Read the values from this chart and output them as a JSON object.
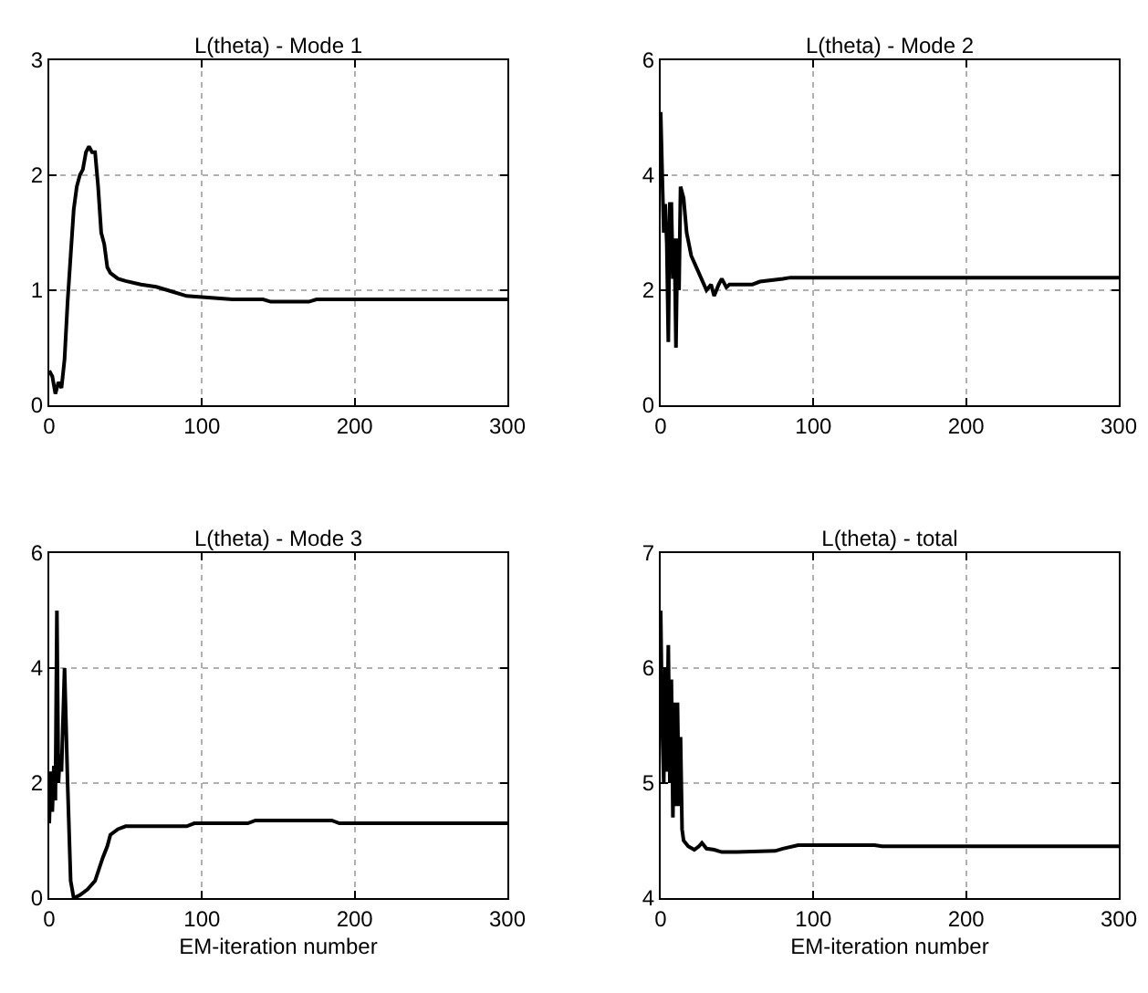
{
  "chart_data": [
    {
      "type": "line",
      "title": "L(theta) - Mode 1",
      "xlim": [
        0,
        300
      ],
      "xticks": [
        0,
        100,
        200,
        300
      ],
      "ylim": [
        0,
        3
      ],
      "yticks": [
        0,
        1,
        2,
        3
      ],
      "grid": true,
      "series": [
        {
          "color": "#000000",
          "x": [
            0,
            2,
            4,
            6,
            8,
            10,
            12,
            14,
            16,
            18,
            20,
            22,
            24,
            26,
            28,
            30,
            32,
            34,
            36,
            38,
            40,
            45,
            50,
            60,
            70,
            80,
            90,
            100,
            110,
            120,
            140,
            145,
            170,
            175,
            200,
            300
          ],
          "values": [
            0.3,
            0.25,
            0.1,
            0.2,
            0.15,
            0.4,
            0.9,
            1.3,
            1.7,
            1.9,
            2.0,
            2.05,
            2.2,
            2.25,
            2.2,
            2.2,
            1.9,
            1.5,
            1.4,
            1.2,
            1.15,
            1.1,
            1.08,
            1.05,
            1.03,
            0.99,
            0.95,
            0.94,
            0.93,
            0.92,
            0.92,
            0.9,
            0.9,
            0.92,
            0.92,
            0.92
          ]
        }
      ]
    },
    {
      "type": "line",
      "title": "L(theta) - Mode 2",
      "xlim": [
        0,
        300
      ],
      "xticks": [
        0,
        100,
        200,
        300
      ],
      "ylim": [
        0,
        6
      ],
      "yticks": [
        0,
        2,
        4,
        6
      ],
      "grid": true,
      "series": [
        {
          "color": "#000000",
          "x": [
            0,
            1,
            2,
            3,
            4,
            5,
            6,
            7,
            8,
            9,
            10,
            11,
            12,
            13,
            15,
            17,
            20,
            25,
            30,
            33,
            35,
            38,
            40,
            43,
            45,
            60,
            65,
            80,
            85,
            300
          ],
          "values": [
            5.1,
            4.0,
            3.0,
            3.5,
            2.8,
            1.1,
            3.5,
            3.5,
            2.2,
            2.9,
            1.0,
            2.9,
            2.0,
            3.8,
            3.6,
            3.0,
            2.6,
            2.3,
            2.0,
            2.1,
            1.9,
            2.1,
            2.2,
            2.05,
            2.1,
            2.1,
            2.15,
            2.2,
            2.22,
            2.22
          ]
        }
      ]
    },
    {
      "type": "line",
      "title": "L(theta) - Mode 3",
      "xlabel": "EM-iteration number",
      "xlim": [
        0,
        300
      ],
      "xticks": [
        0,
        100,
        200,
        300
      ],
      "ylim": [
        0,
        6
      ],
      "yticks": [
        0,
        2,
        4,
        6
      ],
      "grid": true,
      "series": [
        {
          "color": "#000000",
          "x": [
            0,
            1,
            2,
            3,
            4,
            5,
            6,
            7,
            8,
            10,
            12,
            14,
            16,
            20,
            25,
            30,
            35,
            38,
            40,
            45,
            50,
            90,
            95,
            130,
            135,
            185,
            190,
            300
          ],
          "values": [
            1.3,
            2.2,
            1.5,
            2.3,
            1.7,
            5.0,
            2.0,
            2.5,
            2.2,
            4.0,
            2.0,
            0.3,
            0.0,
            0.05,
            0.15,
            0.3,
            0.7,
            0.9,
            1.1,
            1.2,
            1.25,
            1.25,
            1.3,
            1.3,
            1.35,
            1.35,
            1.3,
            1.3
          ]
        }
      ]
    },
    {
      "type": "line",
      "title": "L(theta) - total",
      "xlabel": "EM-iteration number",
      "xlim": [
        0,
        300
      ],
      "xticks": [
        0,
        100,
        200,
        300
      ],
      "ylim": [
        4,
        7
      ],
      "yticks": [
        4,
        5,
        6,
        7
      ],
      "grid": true,
      "series": [
        {
          "color": "#000000",
          "x": [
            0,
            1,
            2,
            3,
            4,
            5,
            6,
            7,
            8,
            9,
            10,
            11,
            12,
            13,
            14,
            15,
            18,
            22,
            25,
            27,
            30,
            35,
            40,
            50,
            75,
            80,
            90,
            140,
            145,
            300
          ],
          "values": [
            6.5,
            5.5,
            5.0,
            6.0,
            5.1,
            6.2,
            5.0,
            5.9,
            4.7,
            5.7,
            4.8,
            5.7,
            4.8,
            5.4,
            4.6,
            4.5,
            4.45,
            4.42,
            4.45,
            4.48,
            4.43,
            4.42,
            4.4,
            4.4,
            4.41,
            4.43,
            4.46,
            4.46,
            4.45,
            4.45
          ]
        }
      ]
    }
  ]
}
